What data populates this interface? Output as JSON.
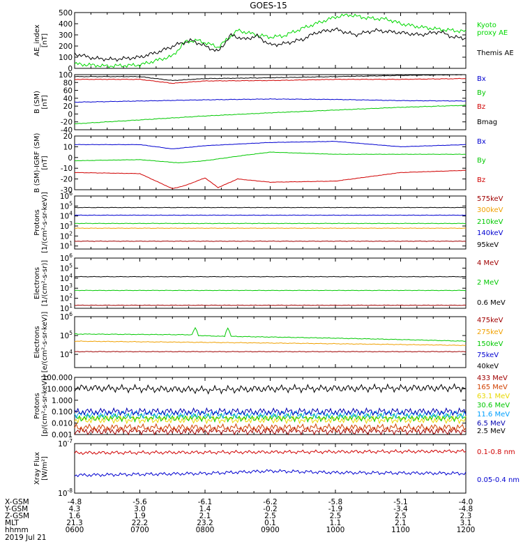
{
  "title": "GOES-15",
  "chart_data": [
    {
      "type": "line",
      "ylabel": "AE_index\n[nT]",
      "ylim": [
        0,
        500
      ],
      "yscale": "linear",
      "yticks": [
        "0",
        "100",
        "200",
        "300",
        "400",
        "500"
      ],
      "series": [
        {
          "name": "Kyoto proxy AE",
          "color": "#00d800",
          "x": [
            0,
            0.5,
            1.0,
            1.5,
            1.7,
            1.9,
            2.2,
            2.5,
            2.8,
            3.0,
            3.2,
            3.5,
            3.8,
            4.0,
            4.2,
            4.5,
            4.8,
            5.0,
            5.3,
            5.6,
            5.8,
            6.0
          ],
          "values": [
            40,
            20,
            30,
            110,
            240,
            250,
            190,
            340,
            300,
            280,
            290,
            360,
            420,
            460,
            480,
            450,
            440,
            400,
            370,
            350,
            340,
            330
          ]
        },
        {
          "name": "Themis AE",
          "color": "#000000",
          "x": [
            0,
            0.3,
            0.6,
            1.0,
            1.3,
            1.6,
            1.8,
            2.0,
            2.2,
            2.4,
            2.6,
            2.8,
            3.0,
            3.2,
            3.5,
            3.7,
            4.0,
            4.3,
            4.6,
            5.0,
            5.3,
            5.6,
            5.8,
            6.0
          ],
          "values": [
            130,
            90,
            80,
            100,
            150,
            220,
            250,
            200,
            150,
            300,
            260,
            290,
            210,
            220,
            260,
            320,
            350,
            300,
            340,
            320,
            300,
            330,
            280,
            270
          ]
        }
      ]
    },
    {
      "type": "line",
      "ylabel": "B (SM)\n[nT]",
      "ylim": [
        -40,
        100
      ],
      "yscale": "linear",
      "yticks": [
        "-40",
        "-20",
        "0",
        "20",
        "40",
        "60",
        "80",
        "100"
      ],
      "series": [
        {
          "name": "Bx",
          "color": "#0000d0",
          "x": [
            0,
            1,
            2,
            3,
            4,
            5,
            6
          ],
          "values": [
            30,
            33,
            36,
            38,
            37,
            34,
            33
          ]
        },
        {
          "name": "By",
          "color": "#00c800",
          "x": [
            0,
            1,
            2,
            3,
            4,
            5,
            6
          ],
          "values": [
            -25,
            -15,
            -5,
            3,
            10,
            17,
            22
          ]
        },
        {
          "name": "Bz",
          "color": "#d00000",
          "x": [
            0,
            1,
            1.5,
            2,
            3,
            4,
            5,
            6
          ],
          "values": [
            88,
            88,
            78,
            84,
            85,
            88,
            88,
            90
          ]
        },
        {
          "name": "Bmag",
          "color": "#000000",
          "x": [
            0,
            1,
            1.5,
            2,
            3,
            4,
            5,
            6
          ],
          "values": [
            95,
            95,
            85,
            90,
            92,
            95,
            98,
            100
          ]
        }
      ]
    },
    {
      "type": "line",
      "ylabel": "B (SM)-IGRF (SM)\n[nT]",
      "ylim": [
        -30,
        20
      ],
      "yscale": "linear",
      "yticks": [
        "-30",
        "-20",
        "-10",
        "0",
        "10",
        "20"
      ],
      "series": [
        {
          "name": "Bx",
          "color": "#0000d0",
          "x": [
            0,
            1,
            1.5,
            2,
            3,
            4,
            5,
            6
          ],
          "values": [
            12,
            12,
            8,
            11,
            14,
            15,
            10,
            12
          ]
        },
        {
          "name": "By",
          "color": "#00c800",
          "x": [
            0,
            1,
            1.6,
            2,
            2.6,
            3,
            4,
            5,
            6
          ],
          "values": [
            -3,
            -2,
            -5,
            -3,
            2,
            5,
            3,
            3,
            3
          ]
        },
        {
          "name": "Bz",
          "color": "#d00000",
          "x": [
            0,
            1,
            1.5,
            1.7,
            2,
            2.2,
            2.5,
            3,
            4,
            5,
            6
          ],
          "values": [
            -14,
            -15,
            -29,
            -26,
            -19,
            -28,
            -20,
            -23,
            -22,
            -14,
            -12
          ]
        }
      ]
    },
    {
      "type": "line",
      "ylabel": "Protons\n[1/(cm²-s-sr-keV)]",
      "ylim": [
        5,
        1000000
      ],
      "yscale": "log",
      "yticks": [
        "10^1",
        "10^2",
        "10^3",
        "10^4",
        "10^5",
        "10^6"
      ],
      "series": [
        {
          "name": "575keV",
          "color": "#a00000",
          "x": [
            0,
            6
          ],
          "values": [
            30,
            30
          ]
        },
        {
          "name": "300keV",
          "color": "#f0a000",
          "x": [
            0,
            6
          ],
          "values": [
            600,
            600
          ]
        },
        {
          "name": "210keV",
          "color": "#00c800",
          "x": [
            0,
            6
          ],
          "values": [
            1800,
            1800
          ]
        },
        {
          "name": "140keV",
          "color": "#0000d0",
          "x": [
            0,
            6
          ],
          "values": [
            12000,
            12000
          ]
        },
        {
          "name": "95keV",
          "color": "#000000",
          "x": [
            0,
            6
          ],
          "values": [
            70000,
            70000
          ]
        }
      ]
    },
    {
      "type": "line",
      "ylabel": "Electrons\n[1/(cm²-s-sr)]",
      "ylim": [
        10,
        1000000
      ],
      "yscale": "log",
      "yticks": [
        "10^1",
        "10^2",
        "10^3",
        "10^4",
        "10^5",
        "10^6"
      ],
      "series": [
        {
          "name": "4 MeV",
          "color": "#a00000",
          "x": [
            0,
            6
          ],
          "values": [
            20,
            20
          ]
        },
        {
          "name": "2 MeV",
          "color": "#00c800",
          "x": [
            0,
            6
          ],
          "values": [
            600,
            600
          ]
        },
        {
          "name": "0.6 MeV",
          "color": "#000000",
          "x": [
            0,
            6
          ],
          "values": [
            14000,
            14000
          ]
        }
      ]
    },
    {
      "type": "line",
      "ylabel": "Electrons\n[e/(cm²-s-sr-keV)]",
      "ylim": [
        2000,
        1000000
      ],
      "yscale": "log",
      "yticks": [
        "10^4",
        "10^5",
        "10^6"
      ],
      "series": [
        {
          "name": "475keV",
          "color": "#a00000",
          "x": [
            0,
            6
          ],
          "values": [
            14000,
            14000
          ]
        },
        {
          "name": "275keV",
          "color": "#f0a000",
          "x": [
            0,
            6
          ],
          "values": [
            50000,
            30000
          ]
        },
        {
          "name": "150keV",
          "color": "#00c800",
          "x": [
            0,
            1.8,
            1.85,
            1.9,
            2.3,
            2.35,
            2.4,
            6
          ],
          "values": [
            120000,
            110000,
            250000,
            100000,
            90000,
            250000,
            90000,
            50000
          ]
        },
        {
          "name": "75keV",
          "color": "#0000d0",
          "x": [],
          "values": []
        },
        {
          "name": "40keV",
          "color": "#000000",
          "x": [],
          "values": []
        }
      ]
    },
    {
      "type": "line",
      "ylabel": "Protons\n[p/(cm²-s-sr-keV)]",
      "ylim": [
        0.001,
        100
      ],
      "yscale": "log",
      "yticks": [
        "0.001",
        "0.010",
        "0.100",
        "1.000",
        "10.000",
        "100.000"
      ],
      "series": [
        {
          "name": "433 MeV",
          "color": "#a00000",
          "x": [
            0,
            6
          ],
          "values": [
            0.002,
            0.002
          ]
        },
        {
          "name": "165 MeV",
          "color": "#d04000",
          "x": [
            0,
            6
          ],
          "values": [
            0.004,
            0.004
          ]
        },
        {
          "name": "63.1 MeV",
          "color": "#e8d800",
          "x": [
            0,
            6
          ],
          "values": [
            0.02,
            0.02
          ]
        },
        {
          "name": "30.6 MeV",
          "color": "#00c800",
          "x": [
            0,
            6
          ],
          "values": [
            0.03,
            0.03
          ]
        },
        {
          "name": "11.6 MeV",
          "color": "#00a0ff",
          "x": [
            0,
            6
          ],
          "values": [
            0.06,
            0.06
          ]
        },
        {
          "name": "6.5 MeV",
          "color": "#0000b0",
          "x": [
            0,
            6
          ],
          "values": [
            0.1,
            0.1
          ]
        },
        {
          "name": "2.5 MeV",
          "color": "#000000",
          "x": [
            0,
            2,
            3,
            6
          ],
          "values": [
            12,
            8,
            10,
            12
          ]
        }
      ]
    },
    {
      "type": "line",
      "ylabel": "Xray Flux\n[W/m²]",
      "ylim": [
        1e-08,
        1e-07
      ],
      "yscale": "log",
      "yticks": [
        "10^-8",
        "10^-7"
      ],
      "series": [
        {
          "name": "0.1-0.8 nm",
          "color": "#d00000",
          "x": [
            0,
            6
          ],
          "values": [
            6.5e-08,
            7e-08
          ]
        },
        {
          "name": "0.05-0.4 nm",
          "color": "#0000d0",
          "x": [
            0,
            2,
            3,
            4,
            6
          ],
          "values": [
            2.3e-08,
            2.5e-08,
            2.8e-08,
            2.6e-08,
            2.5e-08
          ]
        }
      ]
    }
  ],
  "xaxis": {
    "rows": [
      {
        "label": "X-GSM",
        "values": [
          "-4.8",
          "-5.6",
          "-6.1",
          "-6.2",
          "-5.8",
          "-5.1",
          "-4.0"
        ]
      },
      {
        "label": "Y-GSM",
        "values": [
          "4.3",
          "3.0",
          "1.4",
          "-0.2",
          "-1.9",
          "-3.4",
          "-4.8"
        ]
      },
      {
        "label": "Z-GSM",
        "values": [
          "1.6",
          "1.9",
          "2.1",
          "2.5",
          "2.5",
          "2.5",
          "2.3"
        ]
      },
      {
        "label": "MLT",
        "values": [
          "21.3",
          "22.2",
          "23.2",
          "0.1",
          "1.1",
          "2.1",
          "3.1"
        ]
      },
      {
        "label": "hhmm",
        "values": [
          "0600",
          "0700",
          "0800",
          "0900",
          "1000",
          "1100",
          "1200"
        ]
      }
    ],
    "date": "2019 Jul 21"
  }
}
